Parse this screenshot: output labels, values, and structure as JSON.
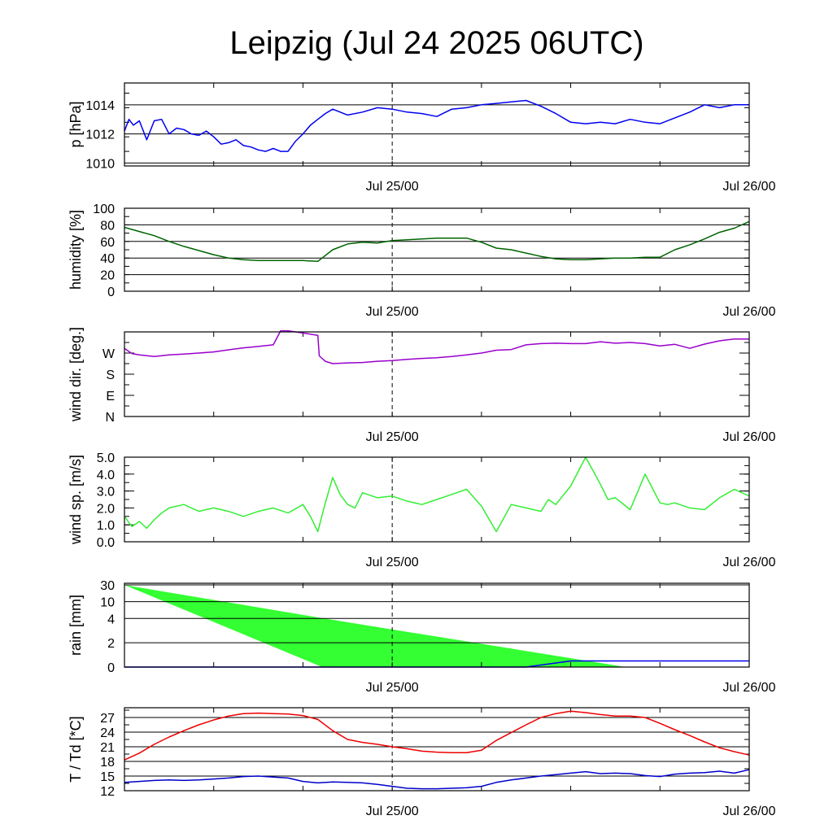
{
  "title": "Leipzig (Jul 24 2025 06UTC)",
  "x_axis": {
    "range_hours": [
      0,
      42
    ],
    "major_ticks_hours": [
      0,
      6,
      12,
      18,
      24,
      30,
      36,
      42
    ],
    "labels": [
      {
        "hour": 18,
        "text": "Jul 25/00"
      },
      {
        "hour": 42,
        "text": "Jul 26/00"
      }
    ],
    "reference_line_hour": 18
  },
  "colors": {
    "pressure": "#0000ee",
    "humidity": "#006400",
    "wind_dir": "#9900cc",
    "wind_speed": "#33ee33",
    "rain_fill": "#33ff33",
    "rain_line": "#0000ee",
    "temperature": "#ee0000",
    "dewpoint": "#0000cc",
    "grid": "#000000"
  },
  "chart_data": [
    {
      "type": "line",
      "id": "pressure",
      "ylabel": "p [hPa]",
      "ylim": [
        1009.8,
        1015.5
      ],
      "yticks": [
        1010,
        1012,
        1014
      ],
      "ytick_labels": [
        "1010",
        "1012",
        "1014"
      ],
      "grid": true,
      "series": [
        {
          "color_key": "pressure",
          "x": [
            0,
            0.3,
            0.6,
            1,
            1.5,
            2,
            2.5,
            3,
            3.5,
            4,
            4.5,
            5,
            5.5,
            6,
            6.5,
            7,
            7.5,
            8,
            8.5,
            9,
            9.5,
            10,
            10.5,
            11,
            11.5,
            12,
            12.5,
            13,
            13.5,
            14,
            15,
            16,
            17,
            18,
            19,
            20,
            21,
            22,
            23,
            24,
            25,
            26,
            27,
            28,
            29,
            30,
            31,
            32,
            33,
            34,
            35,
            36,
            37,
            38,
            39,
            40,
            41,
            42
          ],
          "values": [
            1012.2,
            1013.0,
            1012.6,
            1012.9,
            1011.6,
            1012.9,
            1013.0,
            1012.0,
            1012.4,
            1012.3,
            1012.0,
            1011.9,
            1012.2,
            1011.8,
            1011.3,
            1011.4,
            1011.6,
            1011.2,
            1011.1,
            1010.9,
            1010.8,
            1011.0,
            1010.8,
            1010.8,
            1011.5,
            1012.0,
            1012.6,
            1013.0,
            1013.4,
            1013.7,
            1013.3,
            1013.5,
            1013.8,
            1013.7,
            1013.5,
            1013.4,
            1013.2,
            1013.7,
            1013.8,
            1014.0,
            1014.1,
            1014.2,
            1014.3,
            1013.9,
            1013.4,
            1012.8,
            1012.7,
            1012.8,
            1012.7,
            1013.0,
            1012.8,
            1012.7,
            1013.1,
            1013.5,
            1014.0,
            1013.8,
            1014.0,
            1014.0
          ]
        }
      ]
    },
    {
      "type": "line",
      "id": "humidity",
      "ylabel": "humidity [%]",
      "ylim": [
        0,
        100
      ],
      "yticks": [
        0,
        20,
        40,
        60,
        80,
        100
      ],
      "ytick_labels": [
        "0",
        "20",
        "40",
        "60",
        "80",
        "100"
      ],
      "grid": true,
      "series": [
        {
          "color_key": "humidity",
          "x": [
            0,
            1,
            2,
            3,
            4,
            5,
            6,
            7,
            8,
            9,
            10,
            11,
            12,
            13,
            14,
            15,
            16,
            17,
            18,
            19,
            20,
            21,
            22,
            23,
            24,
            25,
            26,
            27,
            28,
            29,
            30,
            31,
            32,
            33,
            34,
            35,
            36,
            37,
            38,
            39,
            40,
            41,
            42
          ],
          "values": [
            77,
            72,
            67,
            60,
            54,
            49,
            44,
            40,
            38,
            37,
            37,
            37,
            37,
            36,
            50,
            57,
            59,
            58,
            61,
            62,
            63,
            64,
            64,
            64,
            59,
            52,
            50,
            46,
            42,
            39,
            38,
            38,
            39,
            40,
            40,
            41,
            41,
            50,
            56,
            63,
            71,
            76,
            84
          ]
        }
      ]
    },
    {
      "type": "line",
      "id": "wind_dir",
      "ylabel": "wind dir. [deg.]",
      "ylim": [
        0,
        360
      ],
      "yticks": [
        0,
        90,
        180,
        270
      ],
      "ytick_labels": [
        "N",
        "E",
        "S",
        "W"
      ],
      "grid": false,
      "series": [
        {
          "color_key": "wind_dir",
          "x": [
            0,
            0.5,
            1,
            2,
            3,
            4,
            5,
            6,
            7,
            8,
            9,
            10,
            10.5,
            11,
            12,
            13,
            13.1,
            13.5,
            14,
            15,
            16,
            17,
            18,
            19,
            20,
            21,
            22,
            23,
            24,
            25,
            26,
            27,
            28,
            29,
            30,
            31,
            32,
            33,
            34,
            35,
            36,
            37,
            38,
            39,
            40,
            41,
            42
          ],
          "values": [
            290,
            268,
            262,
            255,
            262,
            266,
            270,
            275,
            284,
            292,
            298,
            305,
            365,
            365,
            355,
            345,
            258,
            235,
            225,
            228,
            230,
            235,
            238,
            243,
            247,
            250,
            255,
            262,
            270,
            282,
            285,
            305,
            310,
            312,
            310,
            310,
            318,
            312,
            315,
            310,
            300,
            307,
            290,
            308,
            322,
            330,
            330
          ]
        }
      ]
    },
    {
      "type": "line",
      "id": "wind_speed",
      "ylabel": "wind sp. [m/s]",
      "ylim": [
        0,
        5
      ],
      "yticks": [
        0,
        1,
        2,
        3,
        4,
        5
      ],
      "ytick_labels": [
        "0.0",
        "1.0",
        "2.0",
        "3.0",
        "4.0",
        "5.0"
      ],
      "grid": false,
      "series": [
        {
          "color_key": "wind_speed",
          "x": [
            0,
            0.5,
            1,
            1.5,
            2,
            2.5,
            3,
            4,
            5,
            6,
            7,
            8,
            9,
            10,
            11,
            12,
            12.5,
            13,
            13.5,
            14,
            14.5,
            15,
            15.5,
            16,
            17,
            18,
            19,
            20,
            21,
            22,
            23,
            24,
            25,
            26,
            27,
            28,
            28.5,
            29,
            30,
            31,
            32,
            32.5,
            33,
            34,
            35,
            36,
            36.5,
            37,
            38,
            39,
            40,
            41,
            42
          ],
          "values": [
            1.5,
            0.9,
            1.2,
            0.8,
            1.3,
            1.7,
            2.0,
            2.2,
            1.8,
            2.0,
            1.8,
            1.5,
            1.8,
            2.0,
            1.7,
            2.2,
            1.5,
            0.6,
            2.3,
            3.8,
            2.8,
            2.2,
            2.0,
            2.9,
            2.6,
            2.7,
            2.4,
            2.2,
            2.5,
            2.8,
            3.1,
            2.1,
            0.6,
            2.2,
            2.0,
            1.8,
            2.5,
            2.2,
            3.3,
            5.0,
            3.4,
            2.5,
            2.6,
            1.9,
            4.0,
            2.3,
            2.2,
            2.3,
            2.0,
            1.9,
            2.6,
            3.1,
            2.7
          ]
        }
      ]
    },
    {
      "type": "area",
      "id": "rain",
      "ylabel": "rain [mm]",
      "yticks": [
        0,
        2,
        4,
        10,
        30
      ],
      "ytick_labels": [
        "0",
        "2",
        "4",
        "10",
        "30"
      ],
      "grid": true,
      "series": [
        {
          "color_key": "rain_fill",
          "kind": "band",
          "x": [
            0,
            13.3,
            33.7
          ],
          "upper": [
            30,
            4.1,
            0
          ],
          "lower": [
            30,
            0,
            0
          ]
        },
        {
          "color_key": "rain_line",
          "kind": "line",
          "x": [
            0,
            27,
            30,
            42
          ],
          "values": [
            0,
            0,
            0.5,
            0.5
          ]
        }
      ]
    },
    {
      "type": "line",
      "id": "temperature",
      "ylabel": "T / Td [*C]",
      "ylim": [
        12,
        29
      ],
      "yticks": [
        12,
        15,
        18,
        21,
        24,
        27
      ],
      "ytick_labels": [
        "12",
        "15",
        "18",
        "21",
        "24",
        "27"
      ],
      "grid": true,
      "series": [
        {
          "color_key": "temperature",
          "x": [
            0,
            1,
            2,
            3,
            4,
            5,
            6,
            7,
            8,
            9,
            10,
            11,
            12,
            13,
            14,
            15,
            16,
            17,
            18,
            19,
            20,
            21,
            22,
            23,
            24,
            25,
            26,
            27,
            28,
            29,
            30,
            31,
            32,
            33,
            34,
            35,
            36,
            37,
            38,
            39,
            40,
            41,
            42
          ],
          "values": [
            18.3,
            19.7,
            21.5,
            23.0,
            24.3,
            25.5,
            26.5,
            27.3,
            27.8,
            27.9,
            27.8,
            27.7,
            27.4,
            26.6,
            24.3,
            22.5,
            21.9,
            21.5,
            21.0,
            20.6,
            20.1,
            19.9,
            19.8,
            19.8,
            20.3,
            22.3,
            23.9,
            25.5,
            27.0,
            27.8,
            28.3,
            28.0,
            27.6,
            27.3,
            27.3,
            27.0,
            25.8,
            24.5,
            23.3,
            22.0,
            20.8,
            20.0,
            19.3
          ]
        },
        {
          "color_key": "dewpoint",
          "x": [
            0,
            1,
            2,
            3,
            4,
            5,
            6,
            7,
            8,
            9,
            10,
            11,
            12,
            13,
            14,
            15,
            16,
            17,
            18,
            19,
            20,
            21,
            22,
            23,
            24,
            25,
            26,
            27,
            28,
            29,
            30,
            31,
            32,
            33,
            34,
            35,
            36,
            37,
            38,
            39,
            40,
            41,
            42
          ],
          "values": [
            13.7,
            13.9,
            14.1,
            14.2,
            14.1,
            14.2,
            14.4,
            14.6,
            14.9,
            15.0,
            14.8,
            14.6,
            13.9,
            13.6,
            13.8,
            13.7,
            13.6,
            13.3,
            12.9,
            12.5,
            12.4,
            12.4,
            12.5,
            12.6,
            12.9,
            13.7,
            14.2,
            14.6,
            15.0,
            15.3,
            15.6,
            15.9,
            15.5,
            15.6,
            15.5,
            15.1,
            14.9,
            15.4,
            15.6,
            15.7,
            16.0,
            15.6,
            16.3
          ]
        }
      ]
    }
  ]
}
